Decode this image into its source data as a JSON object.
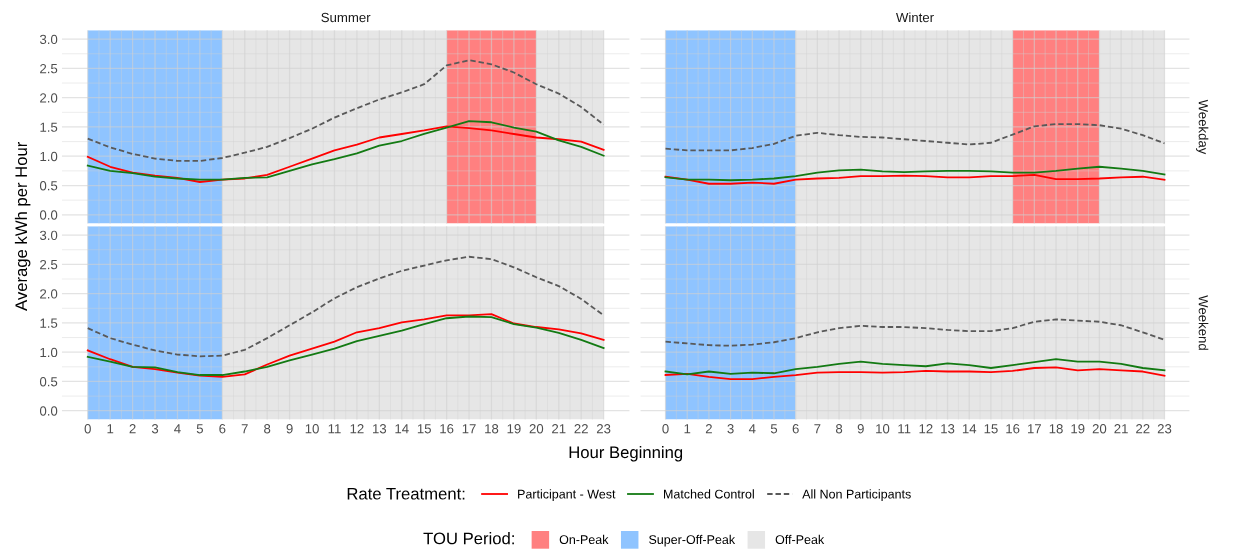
{
  "chart_data": [
    {
      "type": "line",
      "title": "Summer",
      "ylabel": "Average kWh per Hour",
      "legend_title": "Rate Treatment:",
      "legend": "bottom",
      "grid": true,
      "tick_labels": "y",
      "x": [
        0,
        1,
        2,
        3,
        4,
        5,
        6,
        7,
        8,
        9,
        10,
        11,
        12,
        13,
        14,
        15,
        16,
        17,
        18,
        19,
        20,
        21,
        22,
        23
      ],
      "xlim": [
        -1.15,
        24.15
      ],
      "xticks": [
        0,
        1,
        2,
        3,
        4,
        5,
        6,
        7,
        8,
        9,
        10,
        11,
        12,
        13,
        14,
        15,
        16,
        17,
        18,
        19,
        20,
        21,
        22,
        23
      ],
      "ylim": [
        -0.15,
        3.15
      ],
      "yticks": [
        {
          "value": 0,
          "label": "0.0"
        },
        {
          "value": 0.5,
          "label": "0.5"
        },
        {
          "value": 1,
          "label": "1.0"
        },
        {
          "value": 1.5,
          "label": "1.5"
        },
        {
          "value": 2,
          "label": "2.0"
        },
        {
          "value": 2.5,
          "label": "2.5"
        },
        {
          "value": 3,
          "label": "3.0"
        }
      ],
      "bands": [
        {
          "axis": "x",
          "from": 16,
          "to": 20,
          "color": "#ff8080"
        },
        {
          "axis": "x",
          "from": 0,
          "to": 6,
          "color": "#8fc4ff"
        },
        {
          "axis": "x",
          "from": 6,
          "to": 16,
          "color": "#e6e6e6"
        },
        {
          "axis": "x",
          "from": 20,
          "to": 23,
          "color": "#e6e6e6"
        }
      ],
      "series": [
        {
          "name": "Participant - West",
          "color": "#ff0000",
          "line_style": "solid",
          "values": [
            0.99,
            0.82,
            0.72,
            0.67,
            0.63,
            0.56,
            0.6,
            0.62,
            0.68,
            0.82,
            0.96,
            1.1,
            1.2,
            1.32,
            1.38,
            1.44,
            1.51,
            1.48,
            1.44,
            1.38,
            1.32,
            1.29,
            1.25,
            1.11
          ]
        },
        {
          "name": "Matched Control",
          "color": "#137a13",
          "line_style": "solid",
          "values": [
            0.84,
            0.75,
            0.71,
            0.65,
            0.62,
            0.6,
            0.6,
            0.63,
            0.64,
            0.75,
            0.86,
            0.95,
            1.05,
            1.18,
            1.26,
            1.38,
            1.49,
            1.6,
            1.58,
            1.49,
            1.42,
            1.27,
            1.16,
            1.01
          ]
        },
        {
          "name": "All Non Participants",
          "color": "#595959",
          "line_style": "dashed",
          "values": [
            1.3,
            1.15,
            1.04,
            0.96,
            0.92,
            0.92,
            0.97,
            1.06,
            1.16,
            1.31,
            1.47,
            1.66,
            1.82,
            1.97,
            2.09,
            2.23,
            2.55,
            2.64,
            2.57,
            2.43,
            2.23,
            2.07,
            1.84,
            1.54
          ]
        }
      ]
    },
    {
      "type": "line",
      "title": "Winter",
      "y2label": "Weekday",
      "legend_title": "TOU Period:",
      "legend": "bottom",
      "grid": true,
      "tick_labels": false,
      "x": [
        0,
        1,
        2,
        3,
        4,
        5,
        6,
        7,
        8,
        9,
        10,
        11,
        12,
        13,
        14,
        15,
        16,
        17,
        18,
        19,
        20,
        21,
        22,
        23
      ],
      "xlim": [
        -1.15,
        24.15
      ],
      "xticks": [
        0,
        1,
        2,
        3,
        4,
        5,
        6,
        7,
        8,
        9,
        10,
        11,
        12,
        13,
        14,
        15,
        16,
        17,
        18,
        19,
        20,
        21,
        22,
        23
      ],
      "ylim": [
        -0.15,
        3.15
      ],
      "yticks": [
        0,
        0.5,
        1,
        1.5,
        2,
        2.5,
        3
      ],
      "bands": [
        {
          "axis": "x",
          "from": 16,
          "to": 20,
          "label": "On-Peak",
          "color": "#ff8080"
        },
        {
          "axis": "x",
          "from": 0,
          "to": 6,
          "label": "Super-Off-Peak",
          "color": "#8fc4ff"
        },
        {
          "axis": "x",
          "from": 6,
          "to": 16,
          "label": "Off-Peak",
          "color": "#e6e6e6"
        },
        {
          "axis": "x",
          "from": 20,
          "to": 23,
          "color": "#e6e6e6"
        }
      ],
      "series": [
        {
          "color": "#ff0000",
          "line_style": "solid",
          "values": [
            0.65,
            0.6,
            0.53,
            0.53,
            0.55,
            0.53,
            0.6,
            0.62,
            0.63,
            0.66,
            0.66,
            0.67,
            0.66,
            0.64,
            0.64,
            0.66,
            0.66,
            0.68,
            0.61,
            0.61,
            0.62,
            0.64,
            0.65,
            0.6
          ]
        },
        {
          "color": "#137a13",
          "line_style": "solid",
          "values": [
            0.64,
            0.6,
            0.6,
            0.59,
            0.6,
            0.62,
            0.66,
            0.72,
            0.76,
            0.77,
            0.74,
            0.73,
            0.74,
            0.75,
            0.75,
            0.74,
            0.72,
            0.72,
            0.75,
            0.79,
            0.82,
            0.79,
            0.75,
            0.69
          ]
        },
        {
          "color": "#595959",
          "line_style": "dashed",
          "values": [
            1.13,
            1.1,
            1.1,
            1.1,
            1.14,
            1.21,
            1.35,
            1.4,
            1.36,
            1.33,
            1.32,
            1.29,
            1.26,
            1.23,
            1.2,
            1.23,
            1.37,
            1.51,
            1.55,
            1.55,
            1.53,
            1.47,
            1.36,
            1.22
          ]
        }
      ]
    },
    {
      "type": "line",
      "xlabel": "Hour Beginning",
      "grid": true,
      "x": [
        0,
        1,
        2,
        3,
        4,
        5,
        6,
        7,
        8,
        9,
        10,
        11,
        12,
        13,
        14,
        15,
        16,
        17,
        18,
        19,
        20,
        21,
        22,
        23
      ],
      "xlim": [
        -1.15,
        24.15
      ],
      "xticks": [
        0,
        1,
        2,
        3,
        4,
        5,
        6,
        7,
        8,
        9,
        10,
        11,
        12,
        13,
        14,
        15,
        16,
        17,
        18,
        19,
        20,
        21,
        22,
        23
      ],
      "ylim": [
        -0.15,
        3.15
      ],
      "yticks": [
        {
          "value": 0,
          "label": "0.0"
        },
        {
          "value": 0.5,
          "label": "0.5"
        },
        {
          "value": 1,
          "label": "1.0"
        },
        {
          "value": 1.5,
          "label": "1.5"
        },
        {
          "value": 2,
          "label": "2.0"
        },
        {
          "value": 2.5,
          "label": "2.5"
        },
        {
          "value": 3,
          "label": "3.0"
        }
      ],
      "bands": [
        {
          "axis": "x",
          "from": 0,
          "to": 6,
          "color": "#8fc4ff"
        },
        {
          "axis": "x",
          "from": 6,
          "to": 23,
          "color": "#e6e6e6"
        }
      ],
      "series": [
        {
          "color": "#ff0000",
          "line_style": "solid",
          "values": [
            1.03,
            0.88,
            0.75,
            0.71,
            0.65,
            0.6,
            0.58,
            0.62,
            0.79,
            0.94,
            1.06,
            1.18,
            1.34,
            1.41,
            1.51,
            1.56,
            1.63,
            1.63,
            1.65,
            1.49,
            1.43,
            1.39,
            1.32,
            1.21
          ]
        },
        {
          "color": "#137a13",
          "line_style": "solid",
          "values": [
            0.92,
            0.84,
            0.75,
            0.74,
            0.66,
            0.61,
            0.61,
            0.67,
            0.75,
            0.86,
            0.96,
            1.06,
            1.19,
            1.28,
            1.37,
            1.48,
            1.58,
            1.61,
            1.6,
            1.48,
            1.42,
            1.33,
            1.21,
            1.07
          ]
        },
        {
          "color": "#595959",
          "line_style": "dashed",
          "values": [
            1.41,
            1.24,
            1.13,
            1.03,
            0.96,
            0.93,
            0.94,
            1.04,
            1.24,
            1.46,
            1.68,
            1.92,
            2.11,
            2.26,
            2.39,
            2.48,
            2.57,
            2.63,
            2.59,
            2.45,
            2.28,
            2.13,
            1.91,
            1.63
          ]
        }
      ]
    },
    {
      "type": "line",
      "y2label": "Weekend",
      "grid": true,
      "tick_labels": "x",
      "x": [
        0,
        1,
        2,
        3,
        4,
        5,
        6,
        7,
        8,
        9,
        10,
        11,
        12,
        13,
        14,
        15,
        16,
        17,
        18,
        19,
        20,
        21,
        22,
        23
      ],
      "xlim": [
        -1.15,
        24.15
      ],
      "xticks": [
        0,
        1,
        2,
        3,
        4,
        5,
        6,
        7,
        8,
        9,
        10,
        11,
        12,
        13,
        14,
        15,
        16,
        17,
        18,
        19,
        20,
        21,
        22,
        23
      ],
      "ylim": [
        -0.15,
        3.15
      ],
      "yticks": [
        0,
        0.5,
        1,
        1.5,
        2,
        2.5,
        3
      ],
      "bands": [
        {
          "axis": "x",
          "from": 0,
          "to": 6,
          "color": "#8fc4ff"
        },
        {
          "axis": "x",
          "from": 6,
          "to": 23,
          "color": "#e6e6e6"
        }
      ],
      "series": [
        {
          "color": "#ff0000",
          "line_style": "solid",
          "values": [
            0.61,
            0.63,
            0.58,
            0.54,
            0.54,
            0.58,
            0.61,
            0.65,
            0.66,
            0.66,
            0.65,
            0.66,
            0.68,
            0.67,
            0.67,
            0.66,
            0.68,
            0.73,
            0.74,
            0.69,
            0.71,
            0.69,
            0.67,
            0.6
          ]
        },
        {
          "color": "#137a13",
          "line_style": "solid",
          "values": [
            0.67,
            0.62,
            0.67,
            0.63,
            0.65,
            0.64,
            0.71,
            0.75,
            0.8,
            0.84,
            0.8,
            0.78,
            0.76,
            0.81,
            0.78,
            0.73,
            0.78,
            0.83,
            0.88,
            0.84,
            0.84,
            0.8,
            0.73,
            0.69
          ]
        },
        {
          "color": "#595959",
          "line_style": "dashed",
          "values": [
            1.18,
            1.15,
            1.12,
            1.11,
            1.13,
            1.17,
            1.24,
            1.34,
            1.41,
            1.45,
            1.43,
            1.43,
            1.41,
            1.38,
            1.36,
            1.36,
            1.41,
            1.52,
            1.56,
            1.54,
            1.52,
            1.46,
            1.34,
            1.21
          ]
        }
      ]
    }
  ]
}
